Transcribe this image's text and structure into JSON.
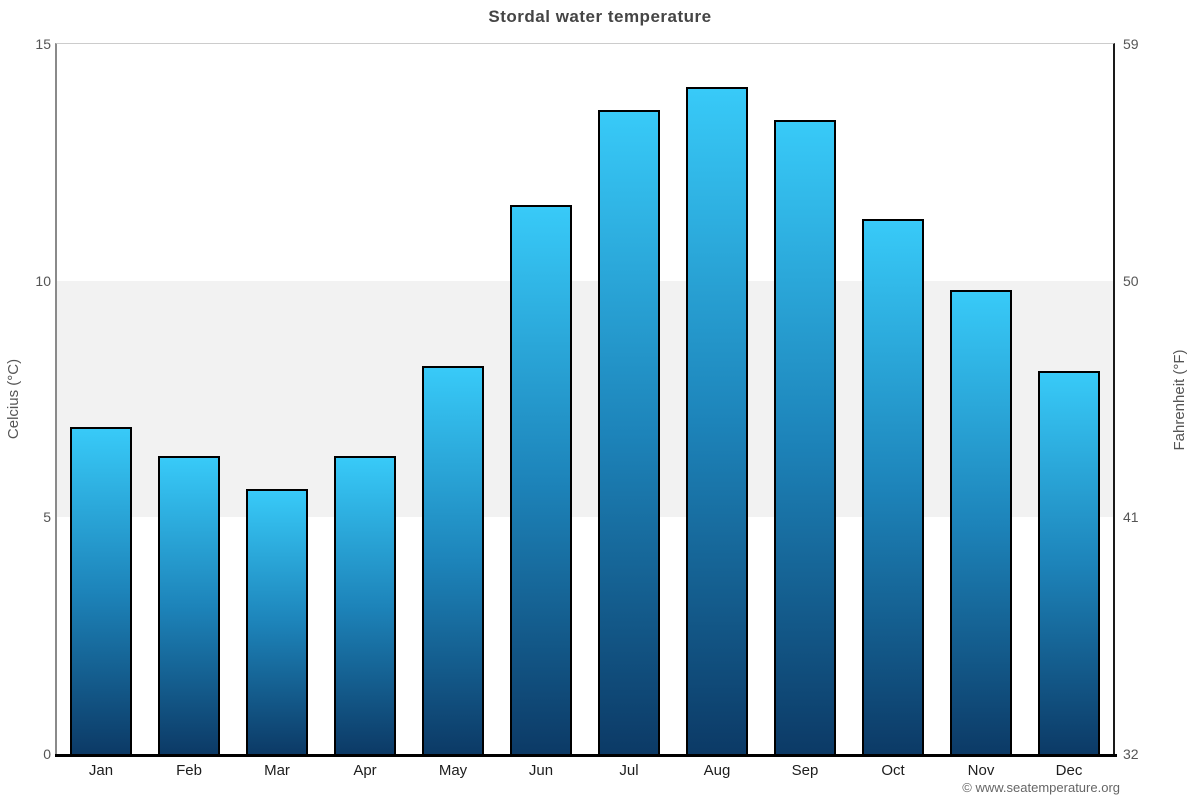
{
  "chart_data": {
    "type": "bar",
    "title": "Stordal water temperature",
    "ylabel_left": "Celcius (°C)",
    "ylabel_right": "Fahrenheit (°F)",
    "categories": [
      "Jan",
      "Feb",
      "Mar",
      "Apr",
      "May",
      "Jun",
      "Jul",
      "Aug",
      "Sep",
      "Oct",
      "Nov",
      "Dec"
    ],
    "values": [
      6.9,
      6.3,
      5.6,
      6.3,
      8.2,
      11.6,
      13.6,
      14.1,
      13.4,
      11.3,
      9.8,
      8.1
    ],
    "unit": "°C",
    "ylim": [
      0,
      15
    ],
    "ylim_fahrenheit": [
      32,
      59
    ],
    "yticks": [
      {
        "value": 15,
        "celsius": "15",
        "fahrenheit": "59"
      },
      {
        "value": 10,
        "celsius": "10",
        "fahrenheit": "50"
      },
      {
        "value": 5,
        "celsius": "5",
        "fahrenheit": "41"
      },
      {
        "value": 0,
        "celsius": "0",
        "fahrenheit": "32"
      }
    ],
    "band": {
      "from": 5,
      "to": 10,
      "color": "#f2f2f2"
    },
    "legend": "none",
    "grid": "alternate-band",
    "bar_colors": {
      "top": "#38CAF8",
      "mid": "#1D84BA",
      "bottom": "#0C3A66"
    },
    "bar_border_color": "#000000"
  },
  "footer": {
    "copyright": "© www.seatemperature.org"
  }
}
